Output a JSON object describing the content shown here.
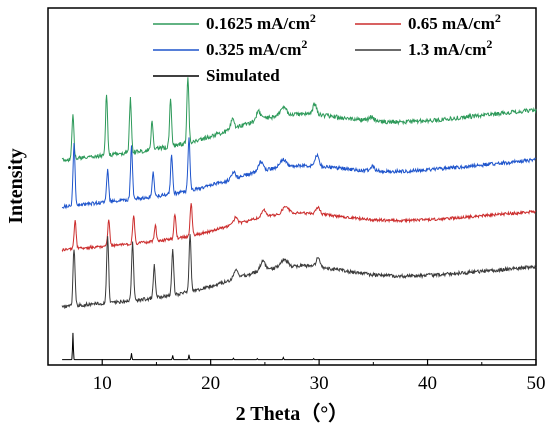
{
  "chart_data": {
    "type": "line",
    "xlabel": "2 Theta（°）",
    "ylabel": "Intensity",
    "xlim": [
      5,
      50
    ],
    "xticks": [
      10,
      20,
      30,
      40,
      50
    ],
    "yticks_visible": false,
    "grid": false,
    "legend_placement": "top",
    "series": [
      {
        "name": "0.1625 mA/cm²",
        "label_main": "0.1625 mA/cm",
        "label_sup": "2",
        "color": "#2e9a5a",
        "baseline_left": 0.43,
        "baseline_right": 0.285,
        "hump": 0.06,
        "noise": 0.006,
        "peaks": [
          [
            7.3,
            0.12,
            0.13
          ],
          [
            10.4,
            0.17,
            0.13
          ],
          [
            12.6,
            0.15,
            0.13
          ],
          [
            14.6,
            0.08,
            0.13
          ],
          [
            16.3,
            0.13,
            0.13
          ],
          [
            17.9,
            0.18,
            0.13
          ],
          [
            22.0,
            0.025,
            0.25
          ],
          [
            24.4,
            0.025,
            0.3
          ],
          [
            26.7,
            0.02,
            0.4
          ],
          [
            29.6,
            0.03,
            0.25
          ],
          [
            34.8,
            0.012,
            0.3
          ]
        ]
      },
      {
        "name": "0.65 mA/cm²",
        "label_main": "0.65 mA/cm",
        "label_sup": "2",
        "color": "#cc2d2d",
        "baseline_left": 0.68,
        "baseline_right": 0.57,
        "hump": 0.05,
        "noise": 0.004,
        "peaks": [
          [
            7.5,
            0.08,
            0.13
          ],
          [
            10.6,
            0.07,
            0.13
          ],
          [
            12.9,
            0.08,
            0.13
          ],
          [
            14.9,
            0.045,
            0.13
          ],
          [
            16.7,
            0.07,
            0.13
          ],
          [
            18.2,
            0.09,
            0.13
          ],
          [
            22.3,
            0.02,
            0.25
          ],
          [
            24.9,
            0.02,
            0.3
          ],
          [
            26.9,
            0.02,
            0.4
          ],
          [
            29.9,
            0.02,
            0.25
          ]
        ]
      },
      {
        "name": "0.325 mA/cm²",
        "label_main": "0.325 mA/cm",
        "label_sup": "2",
        "color": "#1f55cc",
        "baseline_left": 0.56,
        "baseline_right": 0.425,
        "hump": 0.05,
        "noise": 0.005,
        "peaks": [
          [
            7.4,
            0.17,
            0.13
          ],
          [
            10.5,
            0.09,
            0.13
          ],
          [
            12.7,
            0.15,
            0.13
          ],
          [
            14.7,
            0.07,
            0.13
          ],
          [
            16.4,
            0.11,
            0.13
          ],
          [
            18.0,
            0.15,
            0.13
          ],
          [
            22.1,
            0.02,
            0.25
          ],
          [
            24.6,
            0.025,
            0.3
          ],
          [
            26.7,
            0.02,
            0.4
          ],
          [
            29.8,
            0.03,
            0.25
          ],
          [
            34.9,
            0.012,
            0.3
          ]
        ]
      },
      {
        "name": "1.3 mA/cm²",
        "label_main": "1.3 mA/cm",
        "label_sup": "2",
        "color": "#3a3a3a",
        "baseline_left": 0.84,
        "baseline_right": 0.725,
        "hump": 0.06,
        "noise": 0.005,
        "peaks": [
          [
            7.4,
            0.16,
            0.13
          ],
          [
            10.5,
            0.19,
            0.13
          ],
          [
            12.8,
            0.16,
            0.13
          ],
          [
            14.8,
            0.09,
            0.13
          ],
          [
            16.5,
            0.13,
            0.13
          ],
          [
            18.1,
            0.16,
            0.13
          ],
          [
            22.3,
            0.025,
            0.25
          ],
          [
            24.8,
            0.025,
            0.3
          ],
          [
            26.8,
            0.02,
            0.4
          ],
          [
            29.9,
            0.025,
            0.25
          ]
        ]
      },
      {
        "name": "Simulated",
        "label_main": "Simulated",
        "label_sup": "",
        "color": "#000000",
        "baseline_left": 0.985,
        "baseline_right": 0.985,
        "hump": 0,
        "noise": 0,
        "peaks": [
          [
            7.3,
            0.075,
            0.05
          ],
          [
            12.7,
            0.018,
            0.05
          ],
          [
            16.5,
            0.012,
            0.05
          ],
          [
            18.0,
            0.014,
            0.05
          ],
          [
            22.1,
            0.004,
            0.05
          ],
          [
            24.3,
            0.003,
            0.05
          ],
          [
            26.7,
            0.006,
            0.05
          ],
          [
            29.5,
            0.003,
            0.05
          ]
        ]
      }
    ]
  }
}
